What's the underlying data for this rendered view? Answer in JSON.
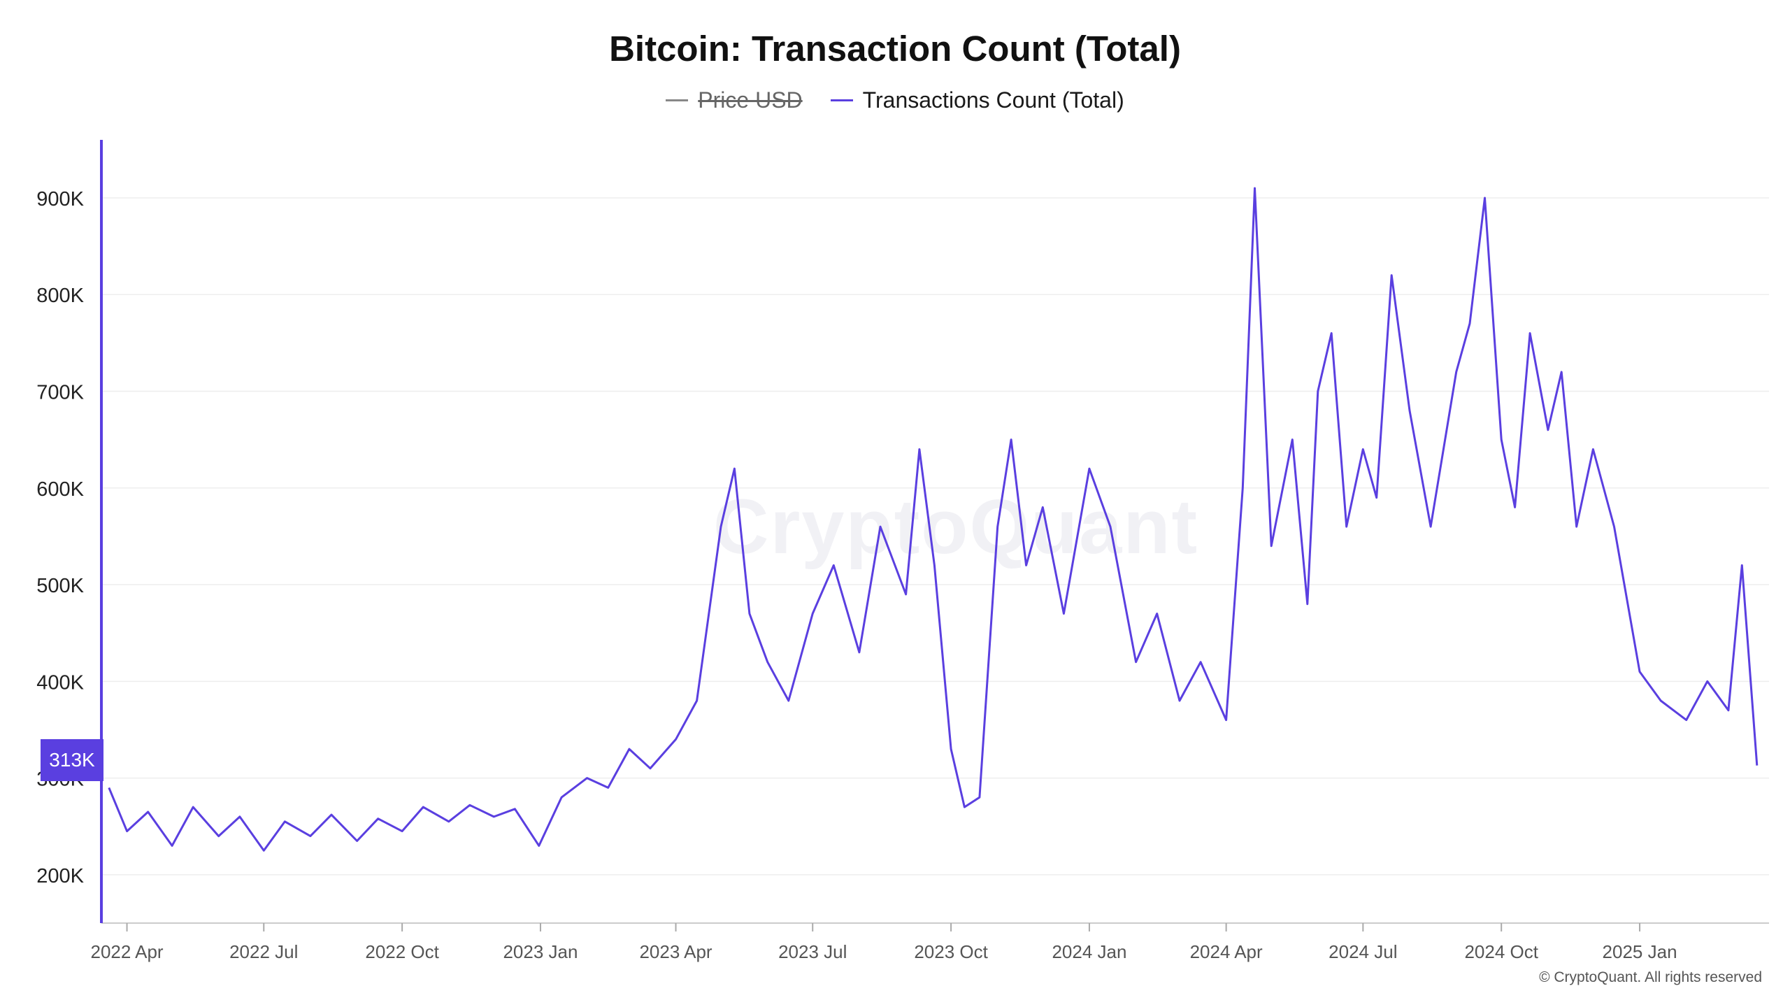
{
  "chart_data": {
    "type": "line",
    "title": "Bitcoin: Transaction Count (Total)",
    "legend": [
      {
        "name": "Price USD",
        "color": "#888888",
        "hidden": true
      },
      {
        "name": "Transactions Count (Total)",
        "color": "#5a3fe0",
        "hidden": false
      }
    ],
    "x_ticks": [
      "2022 Apr",
      "2022 Jul",
      "2022 Oct",
      "2023 Jan",
      "2023 Apr",
      "2023 Jul",
      "2023 Oct",
      "2024 Jan",
      "2024 Apr",
      "2024 Jul",
      "2024 Oct",
      "2025 Jan"
    ],
    "y_ticks": [
      "200K",
      "300K",
      "400K",
      "500K",
      "600K",
      "700K",
      "800K",
      "900K"
    ],
    "ylim": [
      150000,
      960000
    ],
    "grid": true,
    "current_value_label": "313K",
    "series": [
      {
        "name": "Transactions Count (Total)",
        "color": "#5a3fe0",
        "x": [
          "2022-03-20",
          "2022-04-01",
          "2022-04-15",
          "2022-05-01",
          "2022-05-15",
          "2022-06-01",
          "2022-06-15",
          "2022-07-01",
          "2022-07-15",
          "2022-08-01",
          "2022-08-15",
          "2022-09-01",
          "2022-09-15",
          "2022-10-01",
          "2022-10-15",
          "2022-11-01",
          "2022-11-15",
          "2022-12-01",
          "2022-12-15",
          "2022-12-31",
          "2023-01-15",
          "2023-02-01",
          "2023-02-15",
          "2023-03-01",
          "2023-03-15",
          "2023-04-01",
          "2023-04-15",
          "2023-05-01",
          "2023-05-10",
          "2023-05-20",
          "2023-06-01",
          "2023-06-15",
          "2023-07-01",
          "2023-07-15",
          "2023-08-01",
          "2023-08-15",
          "2023-09-01",
          "2023-09-10",
          "2023-09-20",
          "2023-10-01",
          "2023-10-10",
          "2023-10-20",
          "2023-11-01",
          "2023-11-10",
          "2023-11-20",
          "2023-12-01",
          "2023-12-15",
          "2024-01-01",
          "2024-01-15",
          "2024-02-01",
          "2024-02-15",
          "2024-03-01",
          "2024-03-15",
          "2024-04-01",
          "2024-04-12",
          "2024-04-20",
          "2024-05-01",
          "2024-05-15",
          "2024-05-25",
          "2024-06-01",
          "2024-06-10",
          "2024-06-20",
          "2024-07-01",
          "2024-07-10",
          "2024-07-20",
          "2024-08-01",
          "2024-08-15",
          "2024-09-01",
          "2024-09-10",
          "2024-09-20",
          "2024-10-01",
          "2024-10-10",
          "2024-10-20",
          "2024-11-01",
          "2024-11-10",
          "2024-11-20",
          "2024-12-01",
          "2024-12-15",
          "2025-01-01",
          "2025-01-15",
          "2025-02-01",
          "2025-02-15",
          "2025-03-01",
          "2025-03-10",
          "2025-03-20"
        ],
        "values": [
          290000,
          245000,
          265000,
          230000,
          270000,
          240000,
          260000,
          225000,
          255000,
          240000,
          262000,
          235000,
          258000,
          245000,
          270000,
          255000,
          272000,
          260000,
          268000,
          230000,
          280000,
          300000,
          290000,
          330000,
          310000,
          340000,
          380000,
          560000,
          620000,
          470000,
          420000,
          380000,
          470000,
          520000,
          430000,
          560000,
          490000,
          640000,
          520000,
          330000,
          270000,
          280000,
          560000,
          650000,
          520000,
          580000,
          470000,
          620000,
          560000,
          420000,
          470000,
          380000,
          420000,
          360000,
          600000,
          910000,
          540000,
          650000,
          480000,
          700000,
          760000,
          560000,
          640000,
          590000,
          820000,
          680000,
          560000,
          720000,
          770000,
          900000,
          650000,
          580000,
          760000,
          660000,
          720000,
          560000,
          640000,
          560000,
          410000,
          380000,
          360000,
          400000,
          370000,
          520000,
          313000
        ]
      }
    ]
  },
  "watermark": "CryptoQuant",
  "copyright": "© CryptoQuant. All rights reserved"
}
